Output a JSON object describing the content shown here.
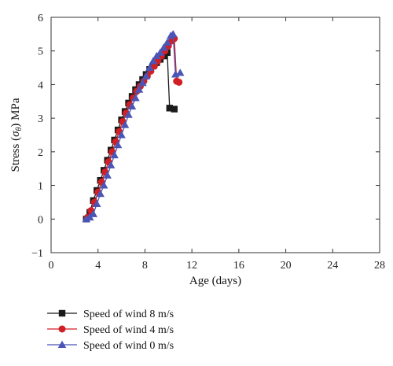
{
  "chart_data": {
    "type": "line",
    "xlabel": "Age (days)",
    "ylabel": {
      "prefix": "Stress (",
      "symbol": "σ",
      "subscript": "θ",
      "suffix": ") MPa"
    },
    "xlim": [
      0,
      28
    ],
    "ylim": [
      -1,
      6
    ],
    "xticks": [
      0,
      4,
      8,
      12,
      16,
      20,
      24,
      28
    ],
    "yticks": [
      -1,
      0,
      1,
      2,
      3,
      4,
      5,
      6
    ],
    "grid": false,
    "legend_position": "bottom-left",
    "series": [
      {
        "name": "Speed of wind 8 m/s",
        "color": "#1a1a1a",
        "marker": "square",
        "points": [
          [
            3.0,
            0.0
          ],
          [
            3.3,
            0.2
          ],
          [
            3.6,
            0.55
          ],
          [
            3.9,
            0.85
          ],
          [
            4.2,
            1.15
          ],
          [
            4.5,
            1.45
          ],
          [
            4.8,
            1.75
          ],
          [
            5.1,
            2.05
          ],
          [
            5.4,
            2.35
          ],
          [
            5.7,
            2.65
          ],
          [
            6.0,
            2.95
          ],
          [
            6.3,
            3.2
          ],
          [
            6.6,
            3.45
          ],
          [
            6.9,
            3.65
          ],
          [
            7.2,
            3.85
          ],
          [
            7.5,
            4.0
          ],
          [
            7.8,
            4.15
          ],
          [
            8.1,
            4.3
          ],
          [
            8.4,
            4.45
          ],
          [
            8.7,
            4.55
          ],
          [
            9.0,
            4.65
          ],
          [
            9.3,
            4.75
          ],
          [
            9.6,
            4.85
          ],
          [
            9.9,
            4.95
          ],
          [
            10.1,
            3.3
          ],
          [
            10.5,
            3.27
          ]
        ]
      },
      {
        "name": "Speed of wind 4 m/s",
        "color": "#d11f26",
        "marker": "circle",
        "points": [
          [
            3.1,
            0.05
          ],
          [
            3.4,
            0.25
          ],
          [
            3.7,
            0.5
          ],
          [
            4.0,
            0.8
          ],
          [
            4.3,
            1.1
          ],
          [
            4.6,
            1.4
          ],
          [
            4.9,
            1.7
          ],
          [
            5.2,
            2.0
          ],
          [
            5.5,
            2.3
          ],
          [
            5.8,
            2.6
          ],
          [
            6.1,
            2.9
          ],
          [
            6.4,
            3.15
          ],
          [
            6.7,
            3.4
          ],
          [
            7.0,
            3.6
          ],
          [
            7.3,
            3.8
          ],
          [
            7.6,
            3.95
          ],
          [
            7.9,
            4.1
          ],
          [
            8.2,
            4.25
          ],
          [
            8.5,
            4.4
          ],
          [
            8.8,
            4.55
          ],
          [
            9.1,
            4.7
          ],
          [
            9.4,
            4.85
          ],
          [
            9.7,
            5.0
          ],
          [
            10.0,
            5.15
          ],
          [
            10.3,
            5.3
          ],
          [
            10.5,
            5.37
          ],
          [
            10.7,
            4.1
          ],
          [
            10.9,
            4.07
          ]
        ]
      },
      {
        "name": "Speed of wind 0 m/s",
        "color": "#4a55b5",
        "marker": "triangle",
        "points": [
          [
            3.0,
            0.0
          ],
          [
            3.3,
            0.05
          ],
          [
            3.6,
            0.15
          ],
          [
            3.9,
            0.45
          ],
          [
            4.2,
            0.75
          ],
          [
            4.5,
            1.0
          ],
          [
            4.8,
            1.3
          ],
          [
            5.1,
            1.6
          ],
          [
            5.4,
            1.9
          ],
          [
            5.7,
            2.2
          ],
          [
            6.0,
            2.5
          ],
          [
            6.3,
            2.8
          ],
          [
            6.6,
            3.1
          ],
          [
            6.9,
            3.35
          ],
          [
            7.2,
            3.6
          ],
          [
            7.5,
            3.85
          ],
          [
            7.8,
            4.05
          ],
          [
            8.1,
            4.25
          ],
          [
            8.4,
            4.5
          ],
          [
            8.7,
            4.7
          ],
          [
            9.0,
            4.85
          ],
          [
            9.3,
            4.95
          ],
          [
            9.6,
            5.1
          ],
          [
            9.9,
            5.25
          ],
          [
            10.2,
            5.45
          ],
          [
            10.4,
            5.5
          ],
          [
            10.6,
            4.3
          ],
          [
            11.0,
            4.35
          ]
        ]
      }
    ]
  }
}
